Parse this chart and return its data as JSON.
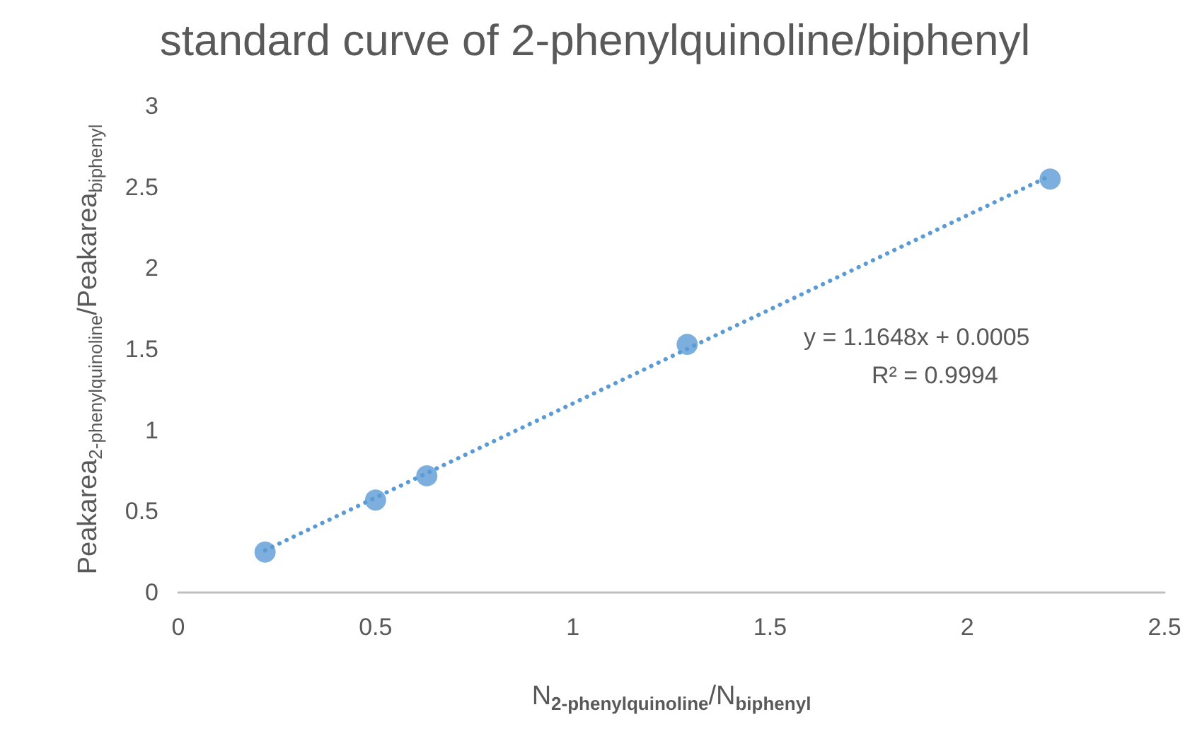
{
  "chart_data": {
    "type": "scatter",
    "title": "standard curve of 2-phenylquinoline/biphenyl",
    "xlabel": "N$_{2-phenylquinoline}$/N$_{biphenyl}$",
    "ylabel": "Peakarea$_{2-phenylquinoline}$/Peakarea$_{biphenyl}$",
    "series": [
      {
        "color": "#5b9bd5",
        "marker": "circle",
        "x": [
          0.22,
          0.5,
          0.63,
          1.29,
          2.21
        ],
        "values": [
          0.25,
          0.57,
          0.72,
          1.53,
          2.55
        ]
      },
      {
        "type": "line",
        "color": "#5b9bd5",
        "marker": "none",
        "line_style": "dotted",
        "x": [
          0.22,
          2.21
        ],
        "values": [
          0.26,
          2.57
        ]
      }
    ],
    "annotations": [
      "y = 1.1648x + 0.0005",
      "R² = 0.9994"
    ],
    "xlim": [
      0,
      2.5
    ],
    "xticks": [
      0,
      0.5,
      1,
      1.5,
      2,
      2.5
    ],
    "ylim": [
      0,
      3
    ],
    "yticks": [
      0,
      0.5,
      1,
      1.5,
      2,
      2.5,
      3
    ],
    "grid": false
  }
}
